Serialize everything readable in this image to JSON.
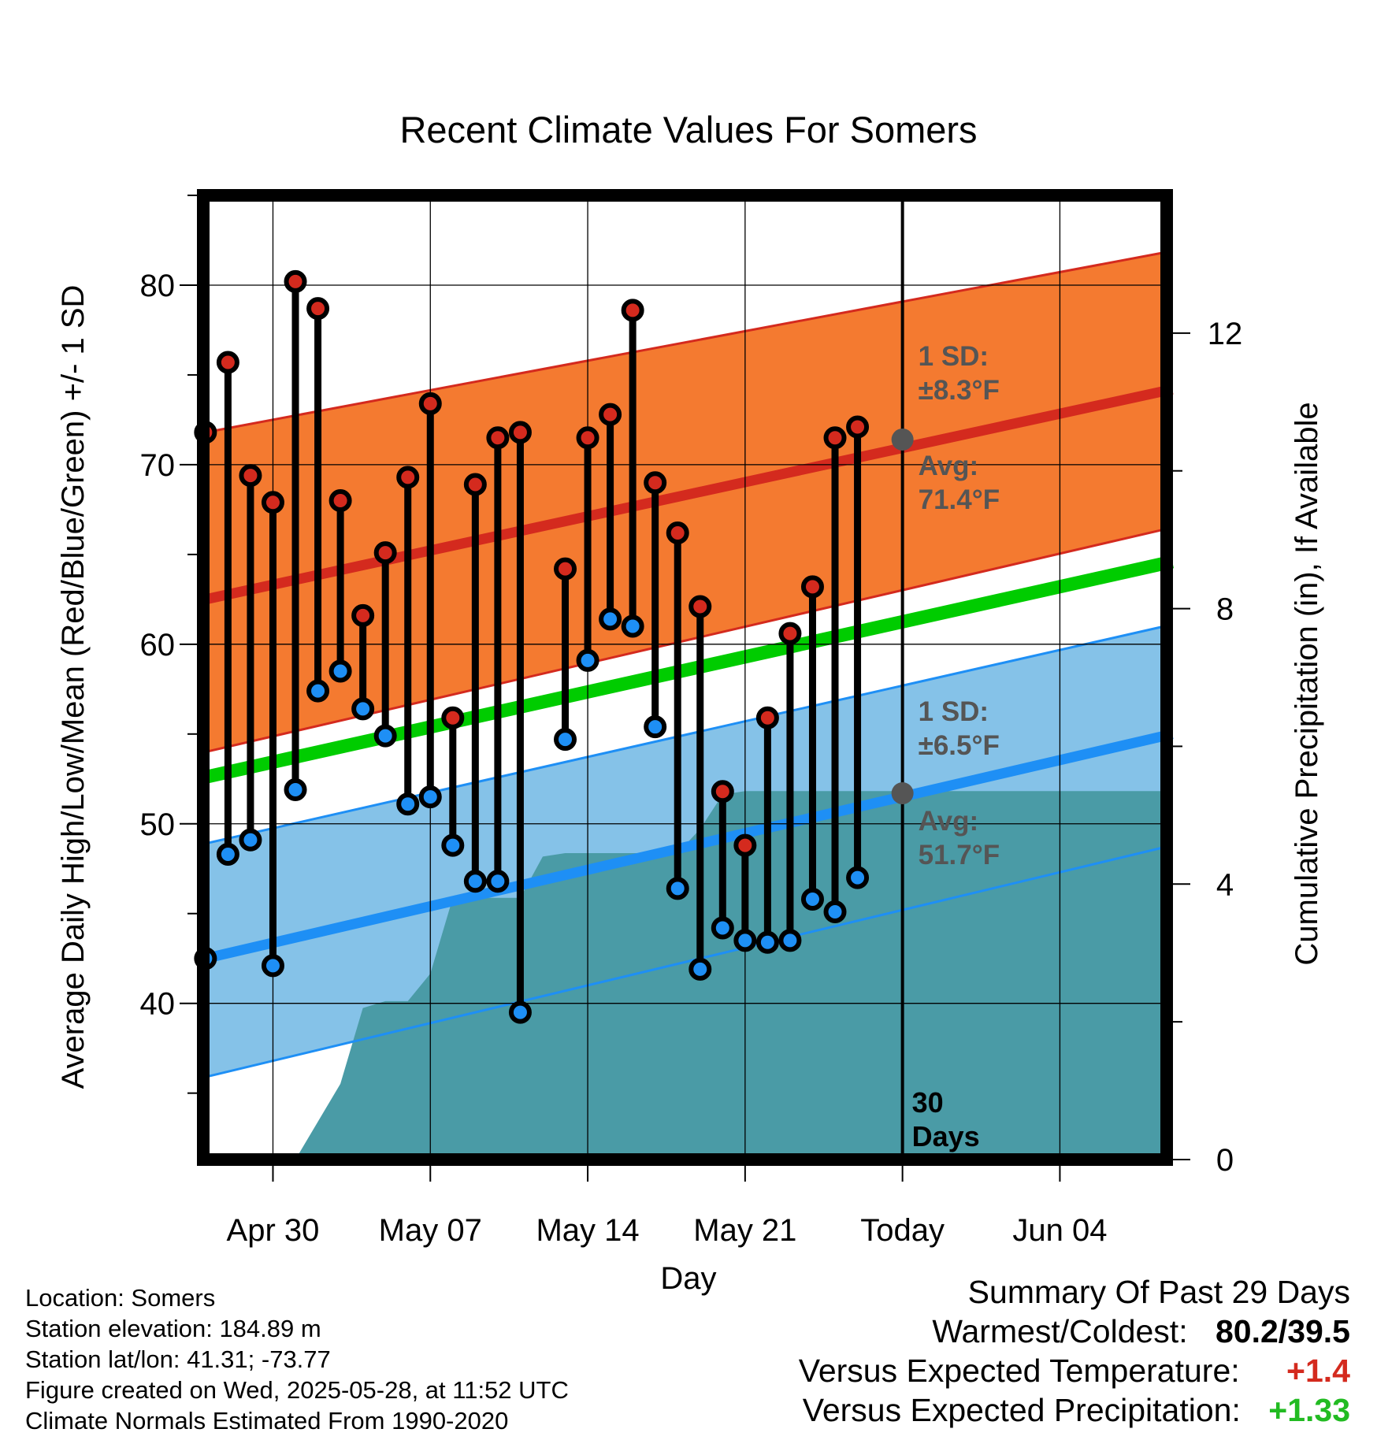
{
  "colors": {
    "high_band": "#f47a30",
    "high_edge": "#d42a1e",
    "high_avg": "#d42a1e",
    "low_band": "#85c2e8",
    "low_edge": "#1e8ff5",
    "low_avg": "#1e8ff5",
    "mean_line": "#00cc00",
    "precip": "#4a9ba6",
    "high_dot": "#d42a1e",
    "low_dot": "#1e8ff5",
    "annotation": "#555555",
    "anomaly_temp": "#d42a1e",
    "anomaly_precip": "#22bb22"
  },
  "chart_data": {
    "type": "line",
    "title": "Recent Climate Values For Somers",
    "xlabel": "Day",
    "ylabel": "Average Daily High/Low/Mean (Red/Blue/Green) +/- 1 SD",
    "y2label": "Cumulative Precipitation (in), If Available",
    "x_start": "Apr 27",
    "x_ticks": [
      {
        "day": 4,
        "label": "Apr 30"
      },
      {
        "day": 11,
        "label": "May 07"
      },
      {
        "day": 18,
        "label": "May 14"
      },
      {
        "day": 25,
        "label": "May 21"
      },
      {
        "day": 32,
        "label": "Today"
      },
      {
        "day": 39,
        "label": "Jun 04"
      }
    ],
    "xlim": [
      0.9,
      43.75
    ],
    "ylim": [
      31.3,
      85
    ],
    "y_ticks": [
      40,
      50,
      60,
      70,
      80
    ],
    "y2lim": [
      0,
      14.0
    ],
    "y2_ticks": [
      0,
      4,
      8,
      12
    ],
    "today_day": 32,
    "today_label": [
      "30",
      "Days"
    ],
    "grid": true,
    "normals": {
      "day_range": [
        1,
        44
      ],
      "high_avg": [
        62.5,
        74.2
      ],
      "high_upper": [
        71.8,
        81.9
      ],
      "high_lower": [
        54.0,
        66.5
      ],
      "low_avg": [
        42.5,
        55.0
      ],
      "low_upper": [
        48.9,
        61.1
      ],
      "low_lower": [
        35.9,
        48.8
      ],
      "mean_avg": [
        52.6,
        64.6
      ]
    },
    "annotations": {
      "high_sd": [
        "1 SD:",
        "±8.3°F"
      ],
      "high_avg": [
        "Avg:",
        "71.4°F"
      ],
      "low_sd": [
        "1 SD:",
        "±6.5°F"
      ],
      "low_avg": [
        "Avg:",
        "51.7°F"
      ],
      "high_avg_today": 71.4,
      "low_avg_today": 51.7
    },
    "series": [
      {
        "name": "High",
        "values": [
          71.8,
          75.7,
          69.4,
          67.9,
          80.2,
          78.7,
          68.0,
          61.6,
          65.1,
          69.3,
          73.4,
          55.9,
          68.9,
          71.5,
          71.8,
          64.2,
          71.5,
          72.8,
          78.6,
          69.0,
          66.2,
          62.1,
          51.8,
          48.8,
          55.9,
          60.6,
          63.2,
          71.5,
          72.1
        ]
      },
      {
        "name": "Low",
        "values": [
          42.5,
          48.3,
          49.1,
          42.1,
          51.9,
          57.4,
          58.5,
          56.4,
          54.9,
          51.1,
          51.5,
          48.8,
          46.8,
          46.8,
          39.5,
          54.7,
          59.1,
          61.4,
          61.0,
          55.4,
          46.4,
          41.9,
          44.2,
          43.5,
          43.4,
          43.5,
          45.8,
          45.1,
          47.0
        ]
      }
    ],
    "obs_days": [
      1,
      2,
      3,
      4,
      5,
      6,
      7,
      8,
      9,
      10,
      11,
      12,
      13,
      14,
      15,
      17,
      18,
      19,
      20,
      21,
      22,
      23,
      24,
      25,
      26,
      27,
      28,
      29,
      30
    ],
    "precip": {
      "days": [
        5,
        6,
        7,
        8,
        9,
        10,
        11,
        12,
        13,
        14,
        15,
        16,
        17,
        18,
        19,
        20,
        21,
        22,
        23,
        24,
        25,
        26,
        27,
        28,
        29,
        30,
        31,
        32,
        43.75
      ],
      "values": [
        0,
        0.55,
        1.1,
        2.2,
        2.3,
        2.3,
        2.7,
        3.8,
        3.8,
        3.8,
        3.8,
        4.4,
        4.45,
        4.45,
        4.45,
        4.45,
        4.45,
        4.45,
        4.8,
        5.3,
        5.35,
        5.35,
        5.35,
        5.35,
        5.35,
        5.35,
        5.35,
        5.35,
        5.35
      ]
    }
  },
  "info": {
    "location": "Location: Somers",
    "elevation": "Station elevation: 184.89 m",
    "latlon": "Station lat/lon: 41.31; -73.77",
    "created": "Figure created on Wed, 2025-05-28, at 11:52 UTC",
    "normals": "Climate Normals Estimated From 1990-2020"
  },
  "summary": {
    "title": "Summary Of Past 29 Days",
    "warm_cold_label": "Warmest/Coldest:",
    "warm_cold_value": "80.2/39.5",
    "temp_label": "Versus Expected Temperature:",
    "temp_value": "+1.4",
    "precip_label": "Versus Expected Precipitation:",
    "precip_value": "+1.33"
  }
}
